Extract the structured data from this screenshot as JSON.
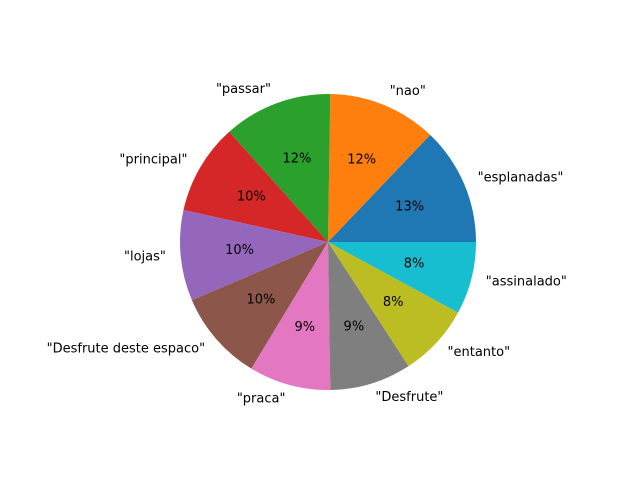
{
  "chart_data": {
    "type": "pie",
    "labels": [
      "\"esplanadas\"",
      "\"nao\"",
      "\"passar\"",
      "\"principal\"",
      "\"lojas\"",
      "\"Desfrute deste espaco\"",
      "\"praca\"",
      "\"Desfrute\"",
      "\"entanto\"",
      "\"assinalado\""
    ],
    "values": [
      13,
      12,
      12,
      10,
      10,
      10,
      9,
      9,
      8,
      8
    ],
    "percent_labels": [
      "13%",
      "12%",
      "12%",
      "10%",
      "10%",
      "10%",
      "9%",
      "9%",
      "8%",
      "8%"
    ],
    "colors": [
      "#1f77b4",
      "#ff7f0e",
      "#2ca02c",
      "#d62728",
      "#9467bd",
      "#8c564b",
      "#e377c2",
      "#7f7f7f",
      "#bcbd22",
      "#17becf"
    ],
    "start_angle_deg": 0,
    "direction": "counterclockwise"
  }
}
